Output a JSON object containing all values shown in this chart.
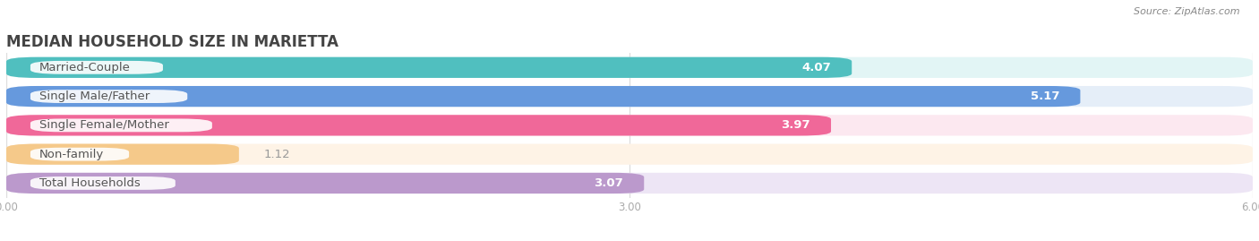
{
  "title": "MEDIAN HOUSEHOLD SIZE IN MARIETTA",
  "source": "Source: ZipAtlas.com",
  "categories": [
    "Married-Couple",
    "Single Male/Father",
    "Single Female/Mother",
    "Non-family",
    "Total Households"
  ],
  "values": [
    4.07,
    5.17,
    3.97,
    1.12,
    3.07
  ],
  "bar_colors": [
    "#50BFBF",
    "#6699DD",
    "#F06899",
    "#F5C98A",
    "#BB99CC"
  ],
  "bar_bg_colors": [
    "#E2F5F5",
    "#E5EEF8",
    "#FCE8F0",
    "#FEF3E6",
    "#EDE5F5"
  ],
  "xlim": [
    0,
    6.0
  ],
  "xticks": [
    0.0,
    3.0,
    6.0
  ],
  "label_color": "#555555",
  "value_color_inside": "white",
  "value_color_outside": "#999999",
  "inside_threshold": 2.0,
  "label_fontsize": 9.5,
  "value_fontsize": 9.5,
  "title_fontsize": 12,
  "background_color": "#ffffff",
  "bar_height": 0.72,
  "bar_gap": 0.28
}
